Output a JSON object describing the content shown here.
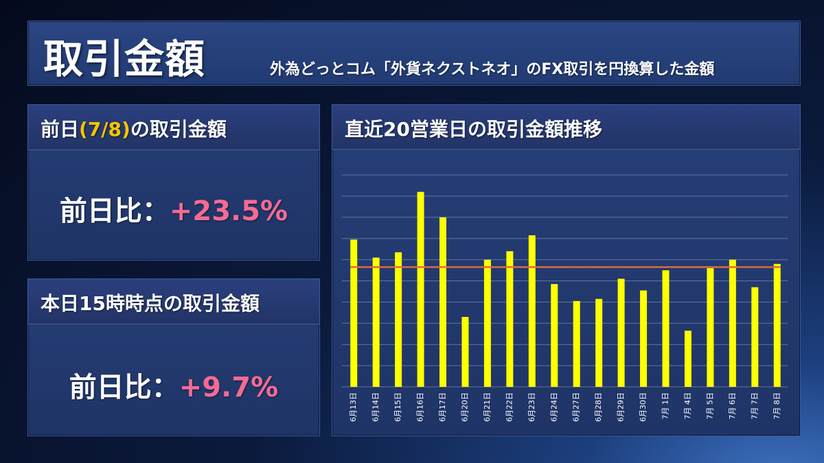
{
  "header": {
    "title": "取引金額",
    "subtitle": "外為どっとコム「外貨ネクストネオ」のFX取引を円換算した金額"
  },
  "prev_day": {
    "label_before": "前日",
    "label_date": "(7/8)",
    "label_after": "の取引金額",
    "ratio_label": "前日比：",
    "ratio_value": "+23.5%"
  },
  "today": {
    "label": "本日15時時点の取引金額",
    "ratio_label": "前日比：",
    "ratio_value": "+9.7%"
  },
  "chart_panel": {
    "title": "直近20営業日の取引金額推移"
  },
  "colors": {
    "bar": "#ffff00",
    "average_line": "#e06a3c",
    "gridline": "#9aa8c9",
    "highlight": "#f5c400",
    "positive_value": "#f46b94"
  },
  "chart_data": {
    "type": "bar",
    "categories": [
      "6月13日",
      "6月14日",
      "6月15日",
      "6月16日",
      "6月17日",
      "6月20日",
      "6月21日",
      "6月22日",
      "6月23日",
      "6月24日",
      "6月27日",
      "6月28日",
      "6月29日",
      "6月30日",
      "7月 1日",
      "7月 4日",
      "7月 5日",
      "7月 6日",
      "7月 7日",
      "7月 8日"
    ],
    "values": [
      69.5,
      61,
      63.5,
      92,
      80,
      33,
      60,
      64,
      71.5,
      48.5,
      40.5,
      41.5,
      51,
      45.5,
      55,
      26.5,
      56,
      60,
      47,
      58
    ],
    "average_line": 56.5,
    "ylim": [
      0,
      100
    ],
    "grid": true,
    "y_ticks_shown": false,
    "title": "",
    "xlabel": "",
    "ylabel": ""
  }
}
